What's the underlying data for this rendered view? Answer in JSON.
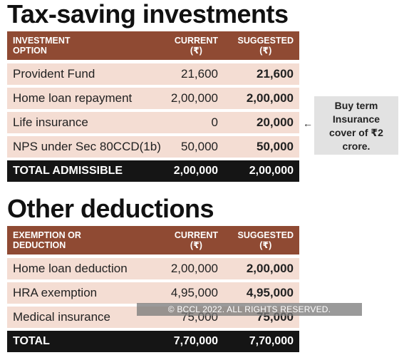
{
  "section1": {
    "title": "Tax-saving investments",
    "header": {
      "col1_line1": "INVESTMENT",
      "col1_line2": "OPTION",
      "col2": "CURRENT",
      "col3": "SUGGESTED",
      "unit": "(₹)"
    },
    "rows": [
      {
        "label": "Provident Fund",
        "current": "21,600",
        "suggested": "21,600"
      },
      {
        "label": "Home loan repayment",
        "current": "2,00,000",
        "suggested": "2,00,000"
      },
      {
        "label": "Life insurance",
        "current": "0",
        "suggested": "20,000"
      },
      {
        "label": "NPS under Sec 80CCD(1b)",
        "current": "50,000",
        "suggested": "50,000"
      }
    ],
    "total": {
      "label": "TOTAL ADMISSIBLE",
      "current": "2,00,000",
      "suggested": "2,00,000"
    }
  },
  "callout": {
    "line1": "Buy term",
    "line2": "Insurance",
    "line3": "cover of ₹2",
    "line4": "crore.",
    "arrow": "←"
  },
  "section2": {
    "title": "Other deductions",
    "header": {
      "col1_line1": "EXEMPTION OR",
      "col1_line2": "DEDUCTION",
      "col2": "CURRENT",
      "col3": "SUGGESTED",
      "unit": "(₹)"
    },
    "rows": [
      {
        "label": "Home loan deduction",
        "current": "2,00,000",
        "suggested": "2,00,000"
      },
      {
        "label": "HRA exemption",
        "current": "4,95,000",
        "suggested": "4,95,000"
      },
      {
        "label": "Medical insurance",
        "current": "75,000",
        "suggested": "75,000"
      }
    ],
    "total": {
      "label": "TOTAL",
      "current": "7,70,000",
      "suggested": "7,70,000"
    }
  },
  "watermark": "© BCCL 2022. ALL RIGHTS RESERVED.",
  "colors": {
    "header_bg": "#8f4a33",
    "row_bg": "#f4ddd3",
    "total_bg": "#151515",
    "callout_bg": "#e2e2e2"
  }
}
